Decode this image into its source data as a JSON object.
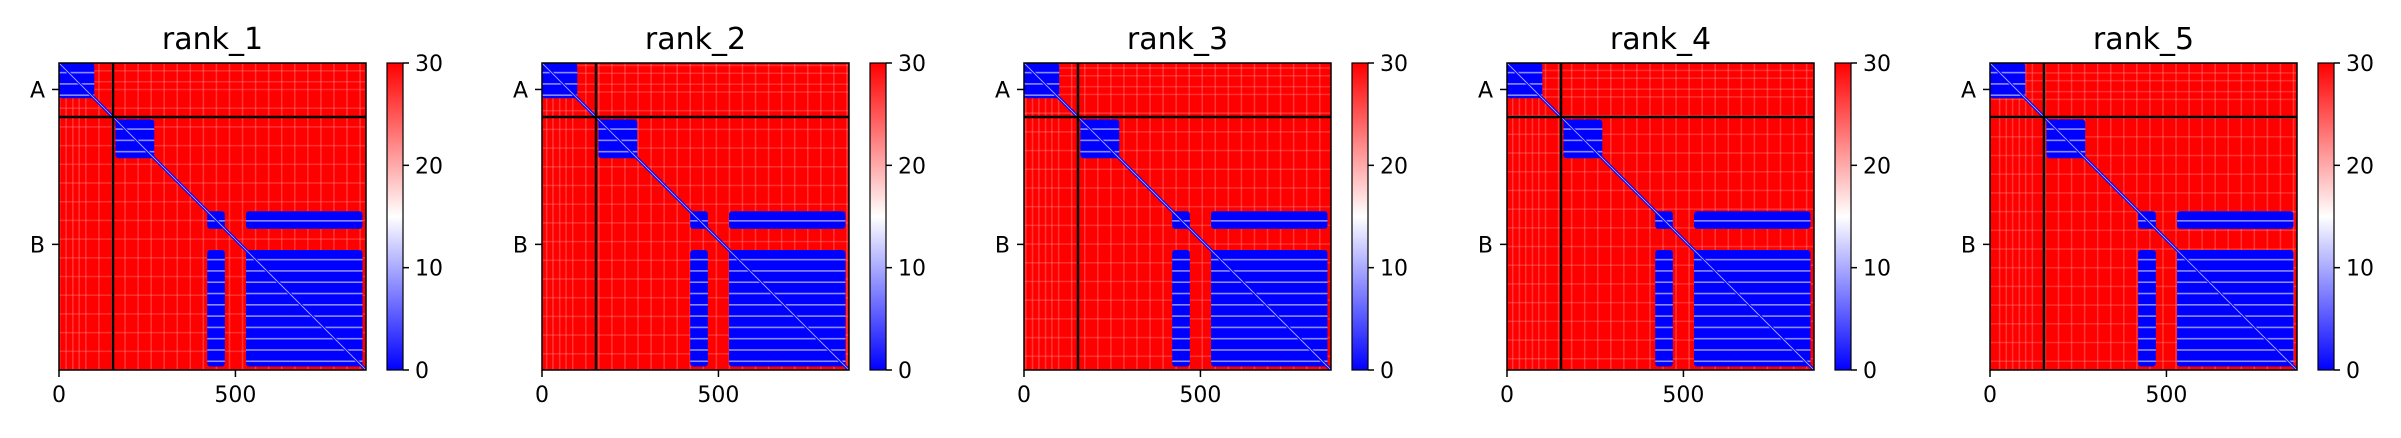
{
  "chart_data": [
    {
      "type": "heatmap",
      "title": "rank_1",
      "xlabel": "",
      "ylabel": "",
      "xlim": [
        0,
        870
      ],
      "x_ticks": [
        "0",
        "500"
      ],
      "x_tick_values": [
        0,
        500
      ],
      "y_ticks": [
        "A",
        "B"
      ],
      "y_tick_values": [
        75,
        514
      ],
      "chain_boundaries": [
        153
      ],
      "chains": [
        {
          "name": "A",
          "start": 0,
          "end": 153
        },
        {
          "name": "B",
          "start": 153,
          "end": 870
        }
      ],
      "colorbar": {
        "min": 0,
        "max": 30,
        "ticks": [
          "0",
          "10",
          "20",
          "30"
        ],
        "tick_values": [
          0,
          10,
          20,
          30
        ],
        "cmap": [
          "#0000ff",
          "#ffffff",
          "#ff0000"
        ]
      },
      "low_error_blocks": [
        {
          "x": [
            0,
            100
          ],
          "y": [
            0,
            100
          ]
        },
        {
          "x": [
            160,
            270
          ],
          "y": [
            160,
            270
          ]
        },
        {
          "x": [
            420,
            470
          ],
          "y": [
            420,
            470
          ]
        },
        {
          "x": [
            420,
            470
          ],
          "y": [
            530,
            860
          ]
        },
        {
          "x": [
            530,
            860
          ],
          "y": [
            420,
            470
          ]
        },
        {
          "x": [
            530,
            860
          ],
          "y": [
            530,
            860
          ]
        }
      ]
    },
    {
      "type": "heatmap",
      "title": "rank_2",
      "xlabel": "",
      "ylabel": "",
      "xlim": [
        0,
        870
      ],
      "x_ticks": [
        "0",
        "500"
      ],
      "x_tick_values": [
        0,
        500
      ],
      "y_ticks": [
        "A",
        "B"
      ],
      "y_tick_values": [
        75,
        514
      ],
      "chain_boundaries": [
        153
      ],
      "chains": [
        {
          "name": "A",
          "start": 0,
          "end": 153
        },
        {
          "name": "B",
          "start": 153,
          "end": 870
        }
      ],
      "colorbar": {
        "min": 0,
        "max": 30,
        "ticks": [
          "0",
          "10",
          "20",
          "30"
        ],
        "tick_values": [
          0,
          10,
          20,
          30
        ],
        "cmap": [
          "#0000ff",
          "#ffffff",
          "#ff0000"
        ]
      },
      "low_error_blocks": [
        {
          "x": [
            0,
            100
          ],
          "y": [
            0,
            100
          ]
        },
        {
          "x": [
            160,
            270
          ],
          "y": [
            160,
            270
          ]
        },
        {
          "x": [
            420,
            470
          ],
          "y": [
            420,
            470
          ]
        },
        {
          "x": [
            420,
            470
          ],
          "y": [
            530,
            860
          ]
        },
        {
          "x": [
            530,
            860
          ],
          "y": [
            420,
            470
          ]
        },
        {
          "x": [
            530,
            860
          ],
          "y": [
            530,
            860
          ]
        }
      ]
    },
    {
      "type": "heatmap",
      "title": "rank_3",
      "xlabel": "",
      "ylabel": "",
      "xlim": [
        0,
        870
      ],
      "x_ticks": [
        "0",
        "500"
      ],
      "x_tick_values": [
        0,
        500
      ],
      "y_ticks": [
        "A",
        "B"
      ],
      "y_tick_values": [
        75,
        514
      ],
      "chain_boundaries": [
        153
      ],
      "chains": [
        {
          "name": "A",
          "start": 0,
          "end": 153
        },
        {
          "name": "B",
          "start": 153,
          "end": 870
        }
      ],
      "colorbar": {
        "min": 0,
        "max": 30,
        "ticks": [
          "0",
          "10",
          "20",
          "30"
        ],
        "tick_values": [
          0,
          10,
          20,
          30
        ],
        "cmap": [
          "#0000ff",
          "#ffffff",
          "#ff0000"
        ]
      },
      "low_error_blocks": [
        {
          "x": [
            0,
            100
          ],
          "y": [
            0,
            100
          ]
        },
        {
          "x": [
            160,
            270
          ],
          "y": [
            160,
            270
          ]
        },
        {
          "x": [
            420,
            470
          ],
          "y": [
            420,
            470
          ]
        },
        {
          "x": [
            420,
            470
          ],
          "y": [
            530,
            860
          ]
        },
        {
          "x": [
            530,
            860
          ],
          "y": [
            420,
            470
          ]
        },
        {
          "x": [
            530,
            860
          ],
          "y": [
            530,
            860
          ]
        }
      ]
    },
    {
      "type": "heatmap",
      "title": "rank_4",
      "xlabel": "",
      "ylabel": "",
      "xlim": [
        0,
        870
      ],
      "x_ticks": [
        "0",
        "500"
      ],
      "x_tick_values": [
        0,
        500
      ],
      "y_ticks": [
        "A",
        "B"
      ],
      "y_tick_values": [
        75,
        514
      ],
      "chain_boundaries": [
        153
      ],
      "chains": [
        {
          "name": "A",
          "start": 0,
          "end": 153
        },
        {
          "name": "B",
          "start": 153,
          "end": 870
        }
      ],
      "colorbar": {
        "min": 0,
        "max": 30,
        "ticks": [
          "0",
          "10",
          "20",
          "30"
        ],
        "tick_values": [
          0,
          10,
          20,
          30
        ],
        "cmap": [
          "#0000ff",
          "#ffffff",
          "#ff0000"
        ]
      },
      "low_error_blocks": [
        {
          "x": [
            0,
            100
          ],
          "y": [
            0,
            100
          ]
        },
        {
          "x": [
            160,
            270
          ],
          "y": [
            160,
            270
          ]
        },
        {
          "x": [
            420,
            470
          ],
          "y": [
            420,
            470
          ]
        },
        {
          "x": [
            420,
            470
          ],
          "y": [
            530,
            860
          ]
        },
        {
          "x": [
            530,
            860
          ],
          "y": [
            420,
            470
          ]
        },
        {
          "x": [
            530,
            860
          ],
          "y": [
            530,
            860
          ]
        }
      ]
    },
    {
      "type": "heatmap",
      "title": "rank_5",
      "xlabel": "",
      "ylabel": "",
      "xlim": [
        0,
        870
      ],
      "x_ticks": [
        "0",
        "500"
      ],
      "x_tick_values": [
        0,
        500
      ],
      "y_ticks": [
        "A",
        "B"
      ],
      "y_tick_values": [
        75,
        514
      ],
      "chain_boundaries": [
        153
      ],
      "chains": [
        {
          "name": "A",
          "start": 0,
          "end": 153
        },
        {
          "name": "B",
          "start": 153,
          "end": 870
        }
      ],
      "colorbar": {
        "min": 0,
        "max": 30,
        "ticks": [
          "0",
          "10",
          "20",
          "30"
        ],
        "tick_values": [
          0,
          10,
          20,
          30
        ],
        "cmap": [
          "#0000ff",
          "#ffffff",
          "#ff0000"
        ]
      },
      "low_error_blocks": [
        {
          "x": [
            0,
            100
          ],
          "y": [
            0,
            100
          ]
        },
        {
          "x": [
            160,
            270
          ],
          "y": [
            160,
            270
          ]
        },
        {
          "x": [
            420,
            470
          ],
          "y": [
            420,
            470
          ]
        },
        {
          "x": [
            420,
            470
          ],
          "y": [
            530,
            860
          ]
        },
        {
          "x": [
            530,
            860
          ],
          "y": [
            420,
            470
          ]
        },
        {
          "x": [
            530,
            860
          ],
          "y": [
            530,
            860
          ]
        }
      ]
    }
  ]
}
